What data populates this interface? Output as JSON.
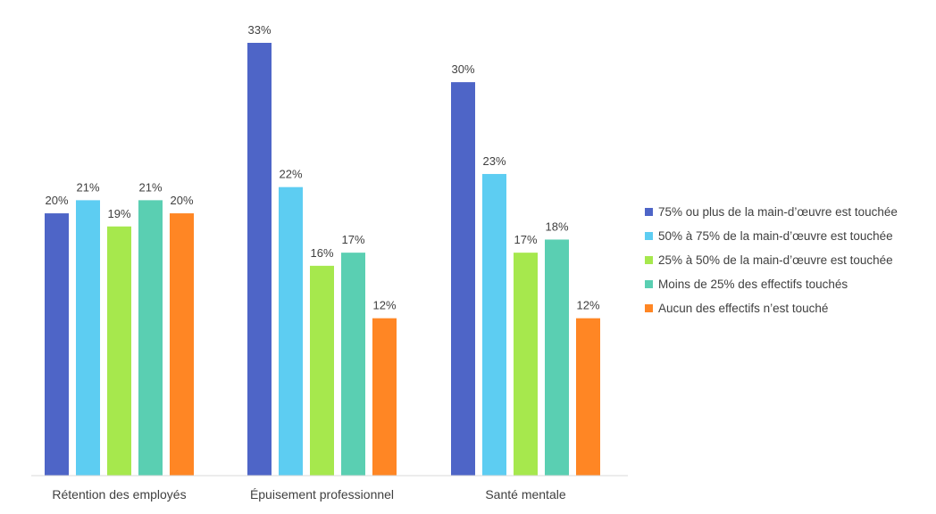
{
  "chart_data": {
    "type": "bar",
    "categories": [
      "Rétention des employés",
      "Épuisement professionnel",
      "Santé mentale"
    ],
    "series": [
      {
        "name": "75% ou plus de la main-d’œuvre est touchée",
        "color": "#4E65C7",
        "values": [
          20,
          33,
          30
        ],
        "labels": [
          "20%",
          "33%",
          "30%"
        ]
      },
      {
        "name": "50% à 75% de la main-d’œuvre est touchée",
        "color": "#5DCDF2",
        "values": [
          21,
          22,
          23
        ],
        "labels": [
          "21%",
          "22%",
          "23%"
        ]
      },
      {
        "name": "25% à 50% de la main-d’œuvre est touchée",
        "color": "#A6E84D",
        "values": [
          19,
          16,
          17
        ],
        "labels": [
          "19%",
          "16%",
          "17%"
        ]
      },
      {
        "name": "Moins de 25% des effectifs touchés",
        "color": "#5ACFB2",
        "values": [
          21,
          17,
          18
        ],
        "labels": [
          "21%",
          "17%",
          "18%"
        ]
      },
      {
        "name": "Aucun des effectifs n’est touché",
        "color": "#FF8624",
        "values": [
          20,
          12,
          12
        ],
        "labels": [
          "20%",
          "12%",
          "12%"
        ]
      }
    ],
    "ylim": [
      0,
      33
    ],
    "grid": false,
    "legend": "right"
  }
}
